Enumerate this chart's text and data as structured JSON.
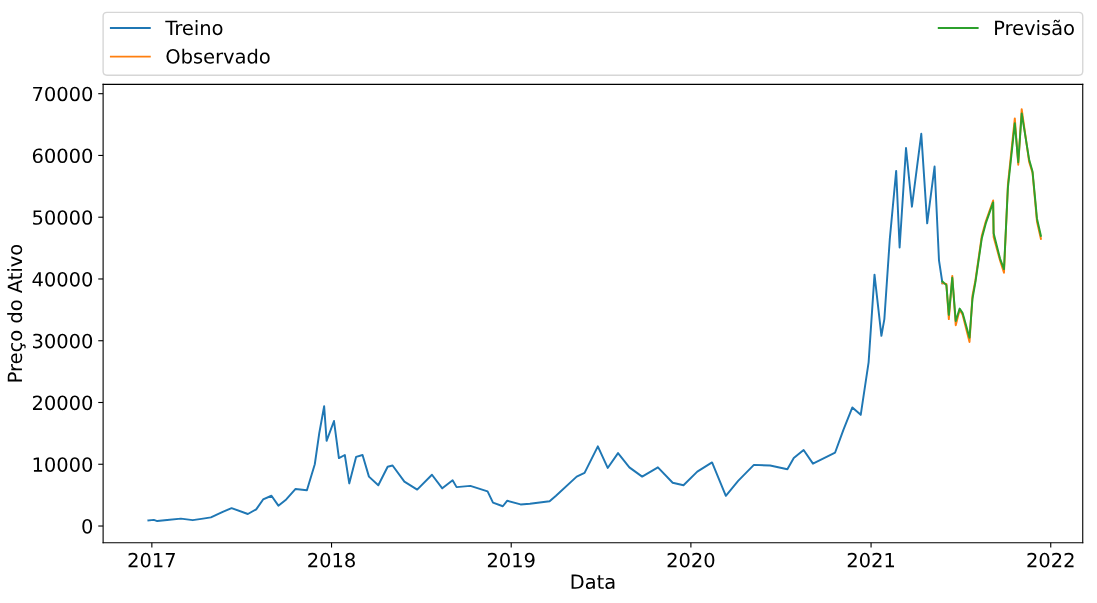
{
  "chart_data": {
    "type": "line",
    "xlabel": "Data",
    "ylabel": "Preço do Ativo",
    "xlim": [
      "2016-09-24",
      "2022-03-07"
    ],
    "xticks": [
      "2017",
      "2018",
      "2019",
      "2020",
      "2021",
      "2022"
    ],
    "ylim": [
      -2700,
      71500
    ],
    "yticks": [
      0,
      10000,
      20000,
      30000,
      40000,
      50000,
      60000,
      70000
    ],
    "grid": false,
    "legend": "top",
    "series": [
      {
        "name": "Treino",
        "color": "#1f77b4",
        "x": [
          "2016-12-25",
          "2017-01-05",
          "2017-01-12",
          "2017-02-01",
          "2017-03-01",
          "2017-03-25",
          "2017-04-15",
          "2017-05-01",
          "2017-05-25",
          "2017-06-12",
          "2017-07-15",
          "2017-08-01",
          "2017-08-15",
          "2017-09-01",
          "2017-09-15",
          "2017-10-01",
          "2017-10-20",
          "2017-11-12",
          "2017-11-28",
          "2017-12-07",
          "2017-12-17",
          "2017-12-22",
          "2018-01-06",
          "2018-01-16",
          "2018-01-28",
          "2018-02-06",
          "2018-02-20",
          "2018-03-05",
          "2018-03-18",
          "2018-04-06",
          "2018-04-25",
          "2018-05-05",
          "2018-05-29",
          "2018-06-24",
          "2018-07-24",
          "2018-08-14",
          "2018-09-04",
          "2018-09-12",
          "2018-10-10",
          "2018-11-14",
          "2018-11-25",
          "2018-12-15",
          "2018-12-24",
          "2019-01-20",
          "2019-02-08",
          "2019-03-20",
          "2019-04-02",
          "2019-05-14",
          "2019-05-30",
          "2019-06-26",
          "2019-07-16",
          "2019-08-06",
          "2019-08-29",
          "2019-09-24",
          "2019-10-26",
          "2019-11-25",
          "2019-12-17",
          "2020-01-14",
          "2020-02-13",
          "2020-03-12",
          "2020-04-06",
          "2020-05-08",
          "2020-06-10",
          "2020-07-15",
          "2020-07-28",
          "2020-08-17",
          "2020-09-05",
          "2020-10-20",
          "2020-11-06",
          "2020-11-24",
          "2020-12-11",
          "2020-12-27",
          "2021-01-08",
          "2021-01-22",
          "2021-01-28",
          "2021-02-08",
          "2021-02-21",
          "2021-02-28",
          "2021-03-13",
          "2021-03-25",
          "2021-04-13",
          "2021-04-25",
          "2021-05-10",
          "2021-05-19",
          "2021-05-26"
        ],
        "values": [
          900,
          1000,
          800,
          970,
          1200,
          950,
          1200,
          1400,
          2300,
          2900,
          1950,
          2700,
          4300,
          4900,
          3300,
          4300,
          6000,
          5800,
          10000,
          15000,
          19400,
          13800,
          17000,
          11000,
          11500,
          6900,
          11200,
          11500,
          8000,
          6600,
          9600,
          9800,
          7200,
          5900,
          8300,
          6100,
          7400,
          6300,
          6500,
          5600,
          3800,
          3200,
          4100,
          3500,
          3600,
          4000,
          4900,
          8000,
          8600,
          12900,
          9400,
          11800,
          9500,
          8000,
          9500,
          7000,
          6600,
          8800,
          10300,
          4900,
          7300,
          9900,
          9800,
          9200,
          11000,
          12300,
          10100,
          11900,
          15600,
          19200,
          18000,
          26500,
          40700,
          30800,
          33500,
          46400,
          57500,
          45100,
          61200,
          51700,
          63500,
          49000,
          58200,
          43000,
          39300
        ]
      },
      {
        "name": "Observado",
        "color": "#ff7f0e",
        "x": [
          "2021-05-26",
          "2021-06-03",
          "2021-06-08",
          "2021-06-15",
          "2021-06-22",
          "2021-06-30",
          "2021-07-06",
          "2021-07-20",
          "2021-07-26",
          "2021-08-01",
          "2021-08-14",
          "2021-08-22",
          "2021-09-06",
          "2021-09-07",
          "2021-09-20",
          "2021-09-28",
          "2021-10-06",
          "2021-10-20",
          "2021-10-27",
          "2021-11-03",
          "2021-11-18",
          "2021-11-25",
          "2021-12-01",
          "2021-12-04",
          "2021-12-12"
        ],
        "values": [
          39300,
          39200,
          33500,
          40500,
          32500,
          35000,
          34200,
          29800,
          37300,
          39800,
          47000,
          49300,
          52700,
          46800,
          43000,
          41000,
          55300,
          66000,
          58500,
          67500,
          59000,
          57200,
          52000,
          49300,
          46500
        ]
      },
      {
        "name": "Previsão",
        "color": "#2ca02c",
        "x": [
          "2021-05-26",
          "2021-06-03",
          "2021-06-08",
          "2021-06-15",
          "2021-06-22",
          "2021-06-30",
          "2021-07-06",
          "2021-07-20",
          "2021-07-26",
          "2021-08-01",
          "2021-08-14",
          "2021-08-22",
          "2021-09-06",
          "2021-09-07",
          "2021-09-20",
          "2021-09-28",
          "2021-10-06",
          "2021-10-20",
          "2021-10-27",
          "2021-11-03",
          "2021-11-18",
          "2021-11-25",
          "2021-12-01",
          "2021-12-04",
          "2021-12-12"
        ],
        "values": [
          39600,
          39000,
          34200,
          40200,
          33200,
          35200,
          34500,
          30500,
          36800,
          39500,
          46600,
          49000,
          52400,
          47400,
          43300,
          41600,
          54800,
          65200,
          58900,
          66800,
          59400,
          57400,
          52400,
          49800,
          47000
        ]
      }
    ]
  }
}
